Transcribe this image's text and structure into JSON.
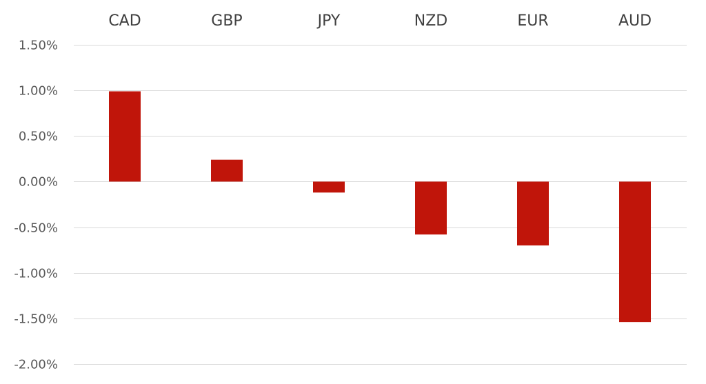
{
  "chart_data": {
    "type": "bar",
    "categories": [
      "CAD",
      "GBP",
      "JPY",
      "NZD",
      "EUR",
      "AUD"
    ],
    "values": [
      0.99,
      0.24,
      -0.12,
      -0.58,
      -0.7,
      -1.54
    ],
    "y_ticks": [
      1.5,
      1.0,
      0.5,
      0.0,
      -0.5,
      -1.0,
      -1.5,
      -2.0
    ],
    "y_tick_labels": [
      "1.50%",
      "1.00%",
      "0.50%",
      "0.00%",
      "-0.50%",
      "-1.00%",
      "-1.50%",
      "-2.00%"
    ],
    "ylim": [
      -2.0,
      1.5
    ],
    "category_labels_position": "top",
    "grid": true,
    "legend": "none",
    "bar_color": "#C0150A",
    "grid_color": "#D9D9D9",
    "title": "",
    "xlabel": "",
    "ylabel": ""
  }
}
